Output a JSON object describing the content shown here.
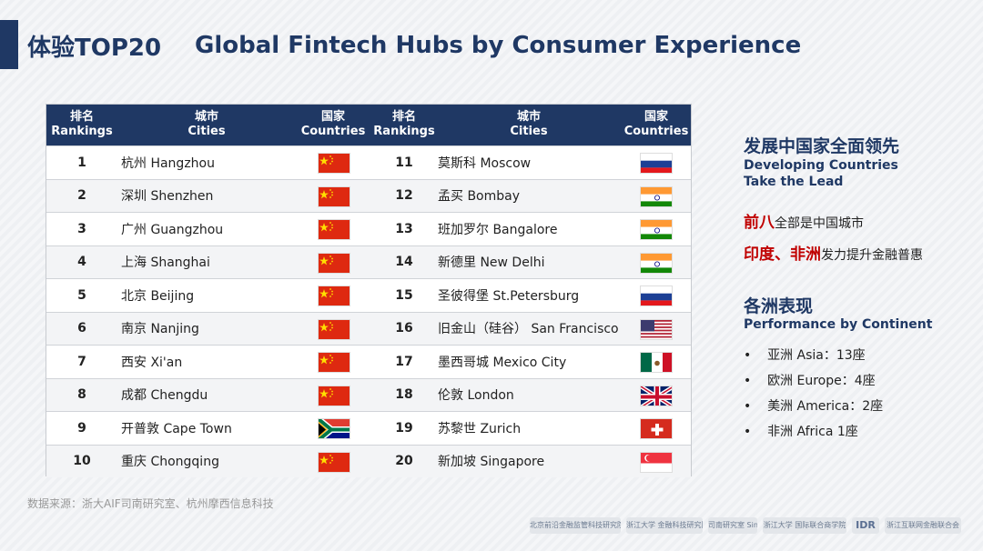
{
  "header": {
    "title_cn": "体验TOP20",
    "title_en": "Global Fintech Hubs by Consumer Experience"
  },
  "table": {
    "headers": {
      "rank_cn": "排名",
      "rank_en": "Rankings",
      "city_cn": "城市",
      "city_en": "Cities",
      "country_cn": "国家",
      "country_en": "Countries"
    },
    "left": [
      {
        "rank": "1",
        "city": "杭州 Hangzhou",
        "flag": "china"
      },
      {
        "rank": "2",
        "city": "深圳 Shenzhen",
        "flag": "china"
      },
      {
        "rank": "3",
        "city": "广州 Guangzhou",
        "flag": "china"
      },
      {
        "rank": "4",
        "city": "上海 Shanghai",
        "flag": "china"
      },
      {
        "rank": "5",
        "city": "北京 Beijing",
        "flag": "china"
      },
      {
        "rank": "6",
        "city": "南京 Nanjing",
        "flag": "china"
      },
      {
        "rank": "7",
        "city": "西安 Xi'an",
        "flag": "china"
      },
      {
        "rank": "8",
        "city": "成都 Chengdu",
        "flag": "china"
      },
      {
        "rank": "9",
        "city": "开普敦 Cape Town",
        "flag": "south-africa"
      },
      {
        "rank": "10",
        "city": "重庆 Chongqing",
        "flag": "china"
      }
    ],
    "right": [
      {
        "rank": "11",
        "city": "莫斯科 Moscow",
        "flag": "russia"
      },
      {
        "rank": "12",
        "city": "孟买 Bombay",
        "flag": "india"
      },
      {
        "rank": "13",
        "city": "班加罗尔 Bangalore",
        "flag": "india"
      },
      {
        "rank": "14",
        "city": "新德里 New Delhi",
        "flag": "india"
      },
      {
        "rank": "15",
        "city": "圣彼得堡 St.Petersburg",
        "flag": "russia"
      },
      {
        "rank": "16",
        "city": "旧金山（硅谷） San Francisco",
        "flag": "usa"
      },
      {
        "rank": "17",
        "city": "墨西哥城 Mexico City",
        "flag": "mexico"
      },
      {
        "rank": "18",
        "city": "伦敦 London",
        "flag": "uk"
      },
      {
        "rank": "19",
        "city": "苏黎世 Zurich",
        "flag": "switzerland"
      },
      {
        "rank": "20",
        "city": "新加坡 Singapore",
        "flag": "singapore"
      }
    ]
  },
  "side": {
    "section1_cn": "发展中国家全面领先",
    "section1_en_1": "Developing Countries",
    "section1_en_2": "Take the Lead",
    "highlight1_red": "前八",
    "highlight1_rest": "全部是中国城市",
    "highlight2_red": "印度、非洲",
    "highlight2_rest": "发力提升金融普惠",
    "section2_cn": "各洲表现",
    "section2_en": "Performance by Continent",
    "bullets": [
      "亚洲 Asia：13座",
      "欧洲 Europe：4座",
      "美洲 America：2座",
      "非洲 Africa 1座"
    ]
  },
  "footer": {
    "source": "数据来源：浙大AIF司南研究室、杭州摩西信息科技",
    "logos": [
      "北京前沿金融监管科技研究院",
      "浙江大学 金融科技研究院",
      "司南研究室 Sinai Lab",
      "浙江大学 国际联合商学院",
      "IDR",
      "浙江互联网金融联合会"
    ]
  },
  "colors": {
    "header_navy": "#1f3864",
    "highlight_red": "#c00000"
  }
}
